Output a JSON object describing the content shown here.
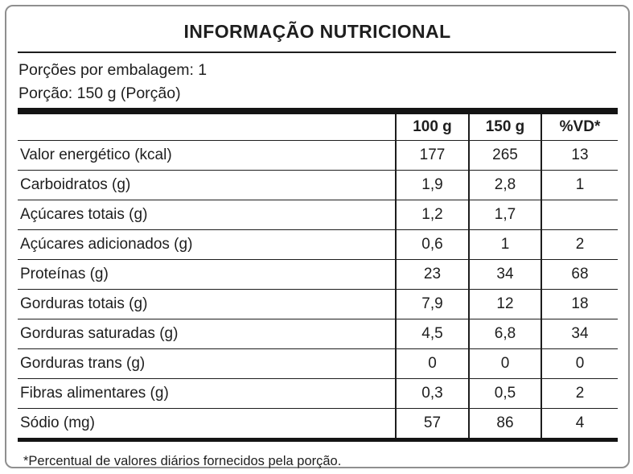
{
  "title": "INFORMAÇÃO NUTRICIONAL",
  "meta": {
    "servings_per_package": "Porções por embalagem: 1",
    "serving_size": "Porção: 150 g (Porção)"
  },
  "table": {
    "headers": [
      "",
      "100 g",
      "150 g",
      "%VD*"
    ],
    "rows": [
      {
        "label": "Valor energético (kcal)",
        "indent": 0,
        "values": [
          "177",
          "265",
          "13"
        ]
      },
      {
        "label": "Carboidratos (g)",
        "indent": 0,
        "values": [
          "1,9",
          "2,8",
          "1"
        ]
      },
      {
        "label": "Açúcares totais (g)",
        "indent": 1,
        "values": [
          "1,2",
          "1,7",
          ""
        ]
      },
      {
        "label": "Açúcares adicionados (g)",
        "indent": 2,
        "values": [
          "0,6",
          "1",
          "2"
        ]
      },
      {
        "label": "Proteínas (g)",
        "indent": 0,
        "values": [
          "23",
          "34",
          "68"
        ]
      },
      {
        "label": "Gorduras totais (g)",
        "indent": 0,
        "values": [
          "7,9",
          "12",
          "18"
        ]
      },
      {
        "label": "Gorduras saturadas (g)",
        "indent": 1,
        "values": [
          "4,5",
          "6,8",
          "34"
        ]
      },
      {
        "label": "Gorduras trans (g)",
        "indent": 1,
        "values": [
          "0",
          "0",
          "0"
        ]
      },
      {
        "label": "Fibras alimentares (g)",
        "indent": 0,
        "values": [
          "0,3",
          "0,5",
          "2"
        ]
      },
      {
        "label": "Sódio (mg)",
        "indent": 0,
        "values": [
          "57",
          "86",
          "4"
        ]
      }
    ]
  },
  "footnote": "*Percentual de valores diários fornecidos pela porção.",
  "colors": {
    "text": "#1e1e1e",
    "table_lines": "#1d1d1d",
    "thick_bars": "#141414",
    "card_border": "#8f8f8f",
    "background": "#ffffff"
  }
}
